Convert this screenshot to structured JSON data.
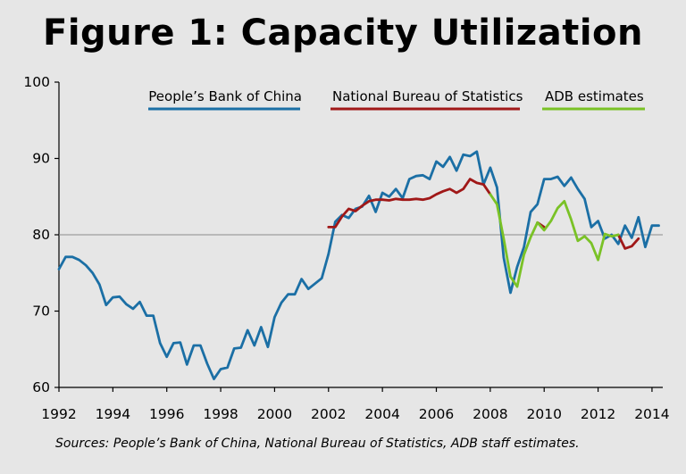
{
  "chart_data": {
    "type": "line",
    "title": "Figure 1: Capacity Utilization",
    "source": "Sources: People’s Bank of China, National Bureau of Statistics, ADB staff estimates.",
    "xlabel": "",
    "ylabel": "",
    "xlim": [
      1992,
      2014.4
    ],
    "ylim": [
      60,
      100
    ],
    "x_ticks": [
      1992,
      1994,
      1996,
      1998,
      2000,
      2002,
      2004,
      2006,
      2008,
      2010,
      2012,
      2014
    ],
    "x_tick_labels": [
      "1992",
      "1994",
      "1996",
      "1998",
      "2000",
      "2002",
      "2004",
      "2006",
      "2008",
      "2010",
      "2012",
      "2014"
    ],
    "y_ticks": [
      60,
      70,
      80,
      90,
      100
    ],
    "y_tick_labels": [
      "60",
      "70",
      "80",
      "90",
      "100"
    ],
    "reference_line": 80,
    "legend_position": "top",
    "series": [
      {
        "name": "People’s Bank of China",
        "color": "#1b6fa5",
        "x": [
          1992.0,
          1992.25,
          1992.5,
          1992.75,
          1993.0,
          1993.25,
          1993.5,
          1993.75,
          1994.0,
          1994.25,
          1994.5,
          1994.75,
          1995.0,
          1995.25,
          1995.5,
          1995.75,
          1996.0,
          1996.25,
          1996.5,
          1996.75,
          1997.0,
          1997.25,
          1997.5,
          1997.75,
          1998.0,
          1998.25,
          1998.5,
          1998.75,
          1999.0,
          1999.25,
          1999.5,
          1999.75,
          2000.0,
          2000.25,
          2000.5,
          2000.75,
          2001.0,
          2001.25,
          2001.5,
          2001.75,
          2002.0,
          2002.25,
          2002.5,
          2002.75,
          2003.0,
          2003.25,
          2003.5,
          2003.75,
          2004.0,
          2004.25,
          2004.5,
          2004.75,
          2005.0,
          2005.25,
          2005.5,
          2005.75,
          2006.0,
          2006.25,
          2006.5,
          2006.75,
          2007.0,
          2007.25,
          2007.5,
          2007.75,
          2008.0,
          2008.25,
          2008.5,
          2008.75,
          2009.0,
          2009.25,
          2009.5,
          2009.75,
          2010.0,
          2010.25,
          2010.5,
          2010.75,
          2011.0,
          2011.25,
          2011.5,
          2011.75,
          2012.0,
          2012.25,
          2012.5,
          2012.75,
          2013.0,
          2013.25,
          2013.5,
          2013.75,
          2014.0,
          2014.25
        ],
        "values": [
          75.5,
          77.1,
          77.1,
          76.7,
          76.0,
          75.0,
          73.5,
          70.8,
          71.8,
          71.9,
          70.9,
          70.3,
          71.2,
          69.4,
          69.4,
          65.8,
          64.0,
          65.8,
          65.9,
          63.0,
          65.5,
          65.5,
          63.1,
          61.1,
          62.4,
          62.6,
          65.1,
          65.2,
          67.5,
          65.5,
          67.9,
          65.3,
          69.2,
          71.1,
          72.2,
          72.2,
          74.2,
          72.9,
          73.6,
          74.3,
          77.5,
          81.7,
          82.6,
          82.2,
          83.4,
          83.7,
          85.1,
          83.0,
          85.5,
          85.0,
          86.0,
          84.8,
          87.3,
          87.7,
          87.8,
          87.3,
          89.6,
          88.9,
          90.2,
          88.4,
          90.5,
          90.3,
          90.9,
          86.6,
          88.8,
          86.2,
          77.0,
          72.4,
          75.8,
          78.4,
          83.0,
          84.0,
          87.3,
          87.3,
          87.6,
          86.4,
          87.5,
          86.0,
          84.7,
          81.0,
          81.8,
          79.5,
          80.0,
          78.8,
          81.2,
          79.6,
          82.3,
          78.4,
          81.2,
          81.2
        ]
      },
      {
        "name": "National Bureau of Statistics",
        "color": "#a01818",
        "x": [
          2002.0,
          2002.25,
          2002.5,
          2002.75,
          2003.0,
          2003.25,
          2003.5,
          2003.75,
          2004.0,
          2004.25,
          2004.5,
          2004.75,
          2005.0,
          2005.25,
          2005.5,
          2005.75,
          2006.0,
          2006.25,
          2006.5,
          2006.75,
          2007.0,
          2007.25,
          2007.5,
          2007.75,
          2008.0,
          2009.75,
          2010.0,
          2012.75,
          2013.0,
          2013.25,
          2013.5
        ],
        "values": [
          81.0,
          81.0,
          82.4,
          83.4,
          83.1,
          83.8,
          84.4,
          84.6,
          84.6,
          84.5,
          84.7,
          84.6,
          84.6,
          84.7,
          84.6,
          84.8,
          85.3,
          85.7,
          86.0,
          85.5,
          86.0,
          87.3,
          86.8,
          86.6,
          85.3,
          81.6,
          81.0,
          80.0,
          78.2,
          78.5,
          79.5
        ]
      },
      {
        "name": "ADB estimates",
        "color": "#7ac226",
        "x": [
          2008.0,
          2008.25,
          2008.5,
          2008.75,
          2009.0,
          2009.25,
          2009.5,
          2009.75,
          2010.0,
          2010.25,
          2010.5,
          2010.75,
          2011.0,
          2011.25,
          2011.5,
          2011.75,
          2012.0,
          2012.25,
          2012.5,
          2012.75
        ],
        "values": [
          85.3,
          84.0,
          79.5,
          74.5,
          73.2,
          77.4,
          79.7,
          81.6,
          80.6,
          81.8,
          83.5,
          84.4,
          82.0,
          79.2,
          79.8,
          78.9,
          76.7,
          80.1,
          79.8,
          80.0
        ]
      }
    ]
  }
}
